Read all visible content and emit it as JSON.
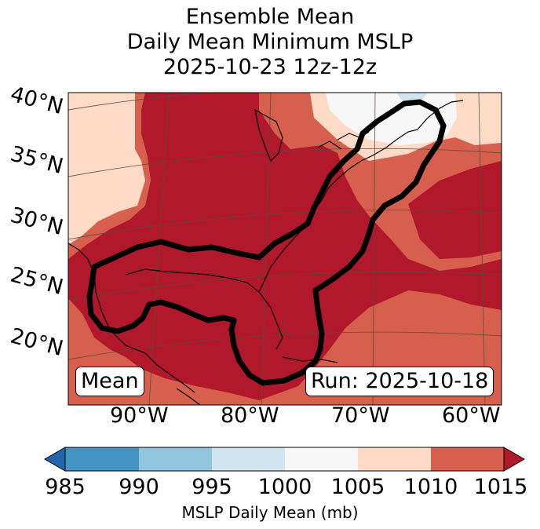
{
  "title": {
    "line1": "Ensemble Mean",
    "line2": "Daily Mean Minimum MSLP",
    "line3": "2025-10-23 12z-12z"
  },
  "map": {
    "lat_labels": [
      "40°N",
      "35°N",
      "30°N",
      "25°N",
      "20°N"
    ],
    "lon_labels": [
      "90°W",
      "80°W",
      "70°W",
      "60°W"
    ],
    "mean_box": "Mean",
    "run_box": "Run: 2025-10-18"
  },
  "colorbar": {
    "ticks": [
      "985",
      "990",
      "995",
      "1000",
      "1005",
      "1010",
      "1015"
    ],
    "label": "MSLP Daily Mean (mb)",
    "colors": {
      "below_985": "#2166ac",
      "985_990": "#4393c3",
      "990_995": "#92c5de",
      "995_1000": "#d1e5f0",
      "1000_1005": "#f7f7f7",
      "1005_1010": "#fddbc7",
      "1010_1015": "#d6604d",
      "above_1015": "#b2182b"
    }
  }
}
